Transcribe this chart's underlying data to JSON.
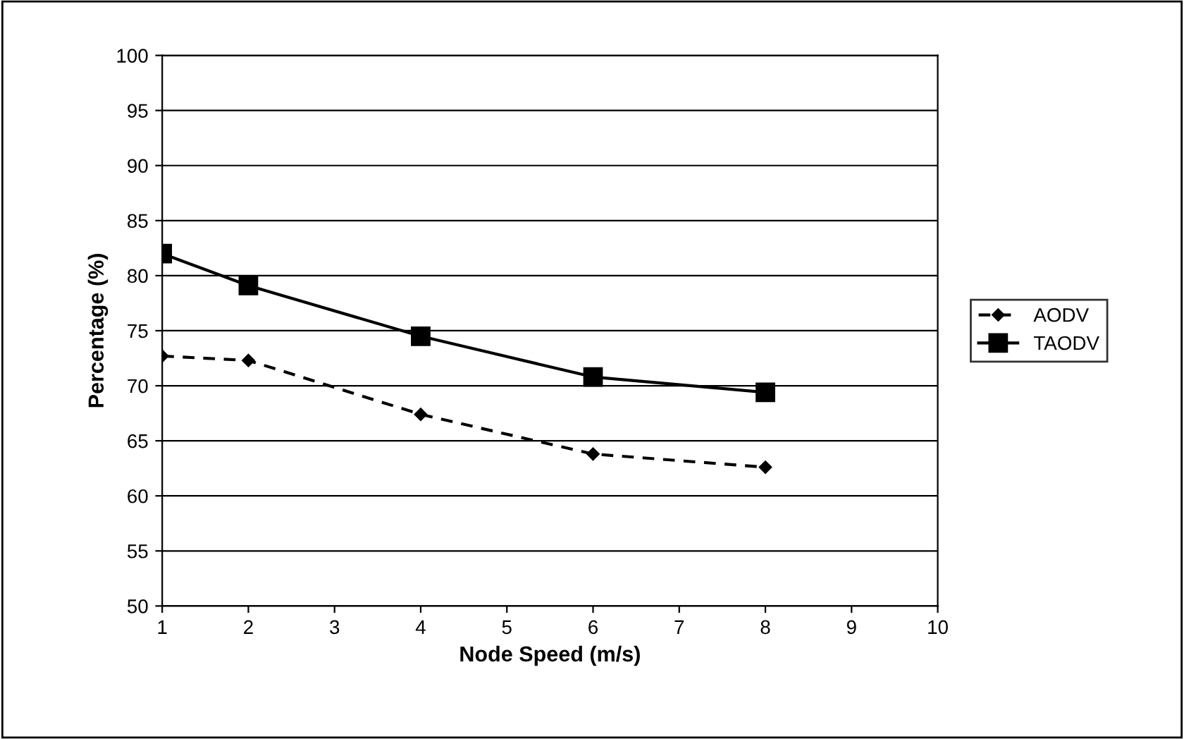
{
  "chart_data": {
    "type": "line",
    "xlabel": "Node Speed (m/s)",
    "ylabel": "Percentage (%)",
    "xlim": [
      1,
      10
    ],
    "xticks": [
      1,
      2,
      3,
      4,
      5,
      6,
      7,
      8,
      9,
      10
    ],
    "ylim": [
      50,
      100
    ],
    "yticks": [
      50,
      55,
      60,
      65,
      70,
      75,
      80,
      85,
      90,
      95,
      100
    ],
    "grid": "y",
    "legend": "right",
    "series": [
      {
        "name": "AODV",
        "color": "#000000",
        "marker": "diamond",
        "line_style": "dashed",
        "x": [
          1,
          2,
          4,
          6,
          8
        ],
        "values": [
          72.7,
          72.3,
          67.4,
          63.8,
          62.6
        ]
      },
      {
        "name": "TAODV",
        "color": "#000000",
        "marker": "square",
        "line_style": "solid",
        "x": [
          1,
          2,
          4,
          6,
          8
        ],
        "values": [
          82.0,
          79.1,
          74.5,
          70.8,
          69.4
        ]
      }
    ]
  }
}
